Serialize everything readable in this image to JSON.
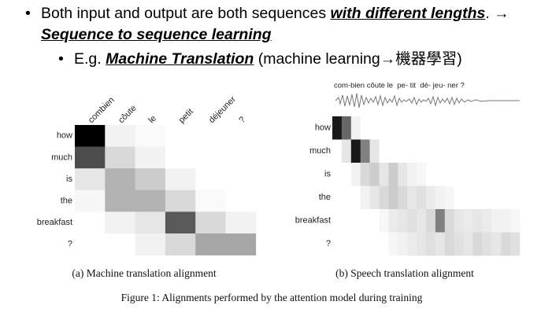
{
  "bullets": [
    {
      "level": 1,
      "parts": [
        {
          "text": "Both input and output are both sequences "
        },
        {
          "text": "with different lengths",
          "emphasis": true
        },
        {
          "text": ". → "
        },
        {
          "text": "Sequence to sequence learning",
          "emphasis": true
        }
      ]
    },
    {
      "level": 2,
      "parts": [
        {
          "text": "E.g. "
        },
        {
          "text": "Machine Translation",
          "emphasis": true
        },
        {
          "text": " (machine learning→機器學習)"
        }
      ]
    }
  ],
  "figure": {
    "left": {
      "caption": "(a) Machine translation alignment",
      "columns": [
        "combien",
        "côute",
        "le",
        "petit",
        "déjeuner",
        "?"
      ],
      "rows": [
        "how",
        "much",
        "is",
        "the",
        "breakfast",
        "?"
      ],
      "weights": [
        [
          1.0,
          0.05,
          0.02,
          0,
          0,
          0
        ],
        [
          0.7,
          0.15,
          0.05,
          0,
          0,
          0
        ],
        [
          0.1,
          0.3,
          0.2,
          0.05,
          0,
          0
        ],
        [
          0.03,
          0.3,
          0.3,
          0.15,
          0.02,
          0
        ],
        [
          0,
          0.05,
          0.1,
          0.65,
          0.15,
          0.05
        ],
        [
          0,
          0,
          0.05,
          0.15,
          0.35,
          0.35
        ]
      ]
    },
    "right": {
      "caption": "(b) Speech translation alignment",
      "utterance": "com-bien côute le  pe- tit  dé- jeu- ner ?",
      "rows": [
        "how",
        "much",
        "is",
        "the",
        "breakfast",
        "?"
      ],
      "weights": [
        [
          0.9,
          0.6,
          0.05,
          0,
          0,
          0,
          0,
          0,
          0,
          0,
          0,
          0,
          0,
          0,
          0,
          0,
          0,
          0,
          0,
          0
        ],
        [
          0,
          0.1,
          0.9,
          0.5,
          0.1,
          0,
          0,
          0,
          0,
          0,
          0,
          0,
          0,
          0,
          0,
          0,
          0,
          0,
          0,
          0
        ],
        [
          0,
          0,
          0.05,
          0.15,
          0.2,
          0.1,
          0.2,
          0.1,
          0.05,
          0.03,
          0,
          0,
          0,
          0,
          0,
          0,
          0,
          0,
          0,
          0
        ],
        [
          0,
          0,
          0,
          0.05,
          0.1,
          0.15,
          0.2,
          0.15,
          0.1,
          0.12,
          0.08,
          0.05,
          0.03,
          0,
          0,
          0,
          0,
          0,
          0,
          0
        ],
        [
          0,
          0,
          0,
          0,
          0,
          0.03,
          0.08,
          0.1,
          0.12,
          0.1,
          0.15,
          0.5,
          0.15,
          0.1,
          0.08,
          0.1,
          0.08,
          0.05,
          0.05,
          0.03
        ],
        [
          0,
          0,
          0,
          0,
          0,
          0,
          0.03,
          0.05,
          0.08,
          0.1,
          0.12,
          0.1,
          0.15,
          0.12,
          0.1,
          0.15,
          0.12,
          0.1,
          0.15,
          0.12
        ]
      ]
    },
    "caption": "Figure 1: Alignments performed by the attention model during training"
  }
}
